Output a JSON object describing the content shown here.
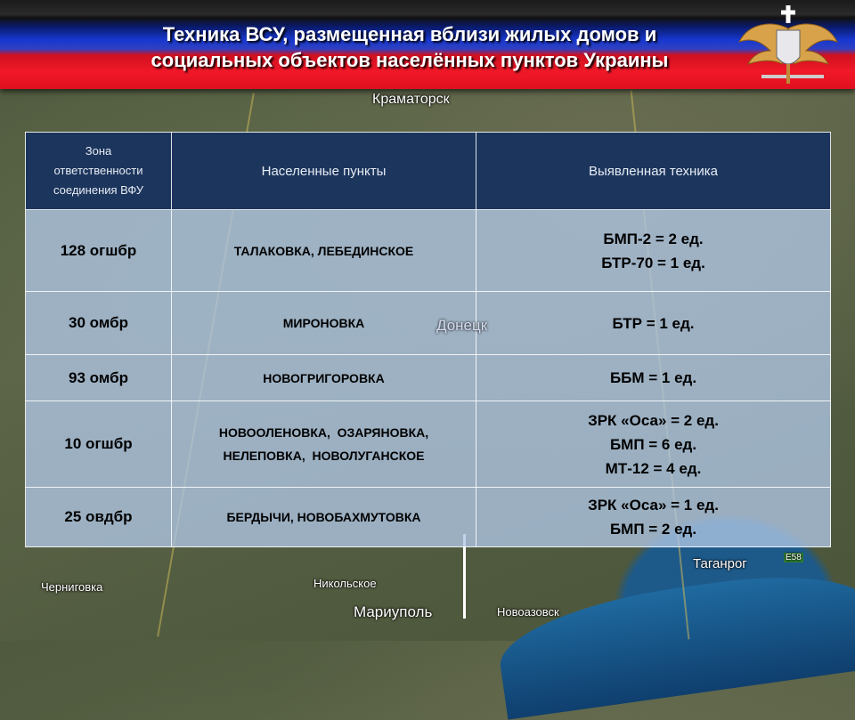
{
  "header": {
    "title_line1": "Техника ВСУ, размещенная вблизи жилых домов и",
    "title_line2": "социальных объектов населённых пунктов Украины",
    "emblem": "double-headed-eagle-emblem"
  },
  "map_labels": {
    "kramatorsk": "Краматорск",
    "donetsk": "Донецк",
    "mariupol": "Мариуполь",
    "novoazovsk": "Новоазовск",
    "nikolskoe": "Никольское",
    "chernigovka": "Черниговка",
    "taganrog": "Таганрог",
    "e58": "E58"
  },
  "table": {
    "headers": {
      "zone_l1": "Зона",
      "zone_l2": "ответственности",
      "zone_l3": "соединения ВФУ",
      "places": "Населенные пункты",
      "equipment": "Выявленная техника"
    },
    "rows": [
      {
        "unit": "128 огшбр",
        "places": [
          "ТАЛАКОВКА, ЛЕБЕДИНСКОЕ"
        ],
        "equipment": [
          "БМП-2 = 2 ед.",
          "БТР-70 = 1 ед."
        ]
      },
      {
        "unit": "30 омбр",
        "places": [
          "МИРОНОВКА"
        ],
        "equipment": [
          "БТР = 1 ед."
        ]
      },
      {
        "unit": "93 омбр",
        "places": [
          "НОВОГРИГОРОВКА"
        ],
        "equipment": [
          "ББМ = 1 ед."
        ]
      },
      {
        "unit": "10 огшбр",
        "places": [
          "НОВООЛЕНОВКА,  ОЗАРЯНОВКА,",
          "НЕЛЕПОВКА,  НОВОЛУГАНСКОЕ"
        ],
        "equipment": [
          "ЗРК «Оса» = 2 ед.",
          "БМП = 6 ед.",
          "МТ-12 = 4 ед."
        ]
      },
      {
        "unit": "25 овдбр",
        "places": [
          "БЕРДЫЧИ, НОВОБАХМУТОВКА"
        ],
        "equipment": [
          "ЗРК «Оса» = 1 ед.",
          "БМП = 2 ед."
        ]
      }
    ]
  }
}
